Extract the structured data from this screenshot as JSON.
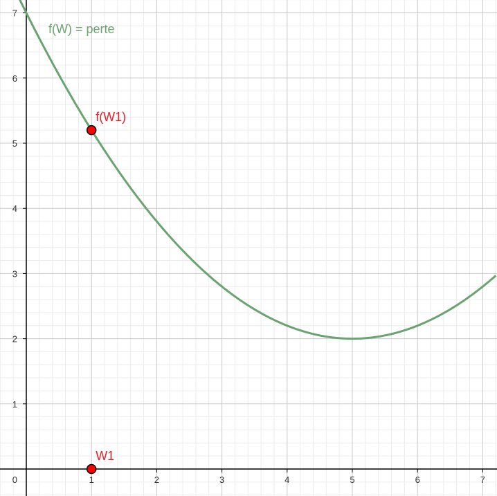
{
  "chart_data": {
    "type": "line",
    "title": "",
    "xlabel": "",
    "ylabel": "",
    "xlim": [
      -0.4,
      7.2
    ],
    "ylim": [
      -0.4,
      7.2
    ],
    "x_ticks": [
      1,
      2,
      3,
      4,
      5,
      6,
      7
    ],
    "y_ticks": [
      1,
      2,
      3,
      4,
      5,
      6,
      7
    ],
    "origin_label": "0",
    "grid": true,
    "series": [
      {
        "name": "f(W) = perte",
        "color": "#6aa36f",
        "function": "0.2*(x-5)^2+2",
        "x": [
          -0.4,
          0,
          1,
          2,
          3,
          4,
          5,
          6,
          7,
          7.2
        ],
        "y": [
          7.832,
          7.0,
          5.2,
          3.8,
          2.8,
          2.2,
          2.0,
          2.2,
          2.8,
          2.968
        ]
      }
    ],
    "points": [
      {
        "label": "f(W1)",
        "x": 1,
        "y": 5.2,
        "color": "#ff0000",
        "label_color": "#e0202a"
      },
      {
        "label": "W1",
        "x": 1,
        "y": 0,
        "color": "#ff0000",
        "label_color": "#e0202a"
      }
    ]
  }
}
